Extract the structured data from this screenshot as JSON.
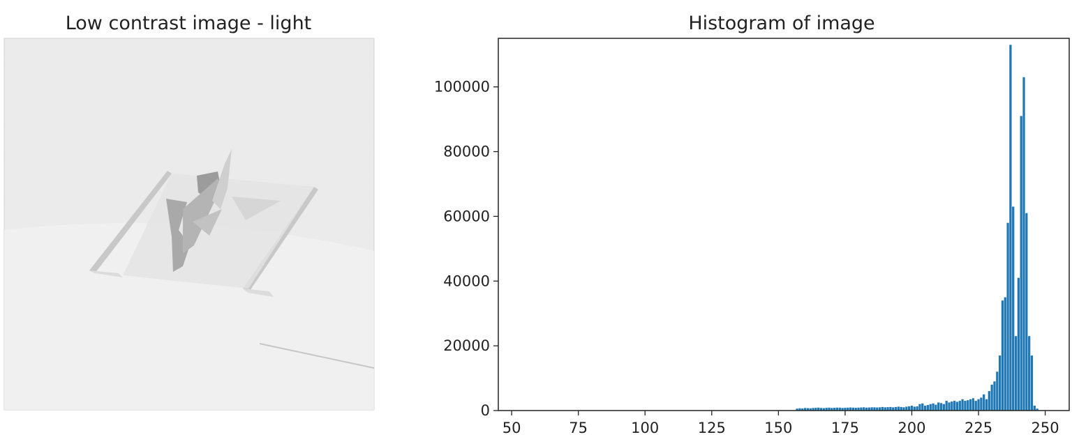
{
  "left_panel": {
    "title": "Low contrast image - light"
  },
  "chart_data": {
    "type": "bar",
    "title": "Histogram of image",
    "xlabel": "",
    "ylabel": "",
    "xlim": [
      45,
      259
    ],
    "ylim": [
      0,
      115000
    ],
    "xticks": [
      50,
      75,
      100,
      125,
      150,
      175,
      200,
      225,
      250
    ],
    "yticks": [
      0,
      20000,
      40000,
      60000,
      80000,
      100000
    ],
    "grid": false,
    "bar_color": "#1f77b4",
    "series": [
      {
        "x": [
          157,
          158,
          159,
          160,
          161,
          162,
          163,
          164,
          165,
          166,
          167,
          168,
          169,
          170,
          171,
          172,
          173,
          174,
          175,
          176,
          177,
          178,
          179,
          180,
          181,
          182,
          183,
          184,
          185,
          186,
          187,
          188,
          189,
          190,
          191,
          192,
          193,
          194,
          195,
          196,
          197,
          198,
          199,
          200,
          201,
          202,
          203,
          204,
          205,
          206,
          207,
          208,
          209,
          210,
          211,
          212,
          213,
          214,
          215,
          216,
          217,
          218,
          219,
          220,
          221,
          222,
          223,
          224,
          225,
          226,
          227,
          228,
          229,
          230,
          231,
          232,
          233,
          234,
          235,
          236,
          237,
          238,
          239,
          240,
          241,
          242,
          243,
          244,
          245,
          246,
          247
        ],
        "values": [
          600,
          700,
          650,
          800,
          750,
          700,
          800,
          850,
          900,
          800,
          750,
          850,
          900,
          800,
          850,
          900,
          900,
          800,
          850,
          900,
          950,
          900,
          850,
          900,
          950,
          1000,
          900,
          950,
          1000,
          1000,
          950,
          1000,
          1100,
          1000,
          1050,
          1100,
          1000,
          1100,
          1200,
          1100,
          1000,
          1200,
          1300,
          1500,
          1200,
          1300,
          2000,
          2200,
          1500,
          1700,
          2000,
          2200,
          1800,
          2500,
          2300,
          2000,
          3000,
          2500,
          2800,
          3000,
          2700,
          3000,
          3500,
          3000,
          3200,
          3500,
          3800,
          3000,
          3500,
          4000,
          5000,
          3500,
          6000,
          8000,
          9000,
          12000,
          17000,
          34000,
          35000,
          58000,
          113000,
          63000,
          23000,
          41000,
          91000,
          103000,
          61000,
          23000,
          17000,
          1500,
          600
        ]
      }
    ]
  }
}
